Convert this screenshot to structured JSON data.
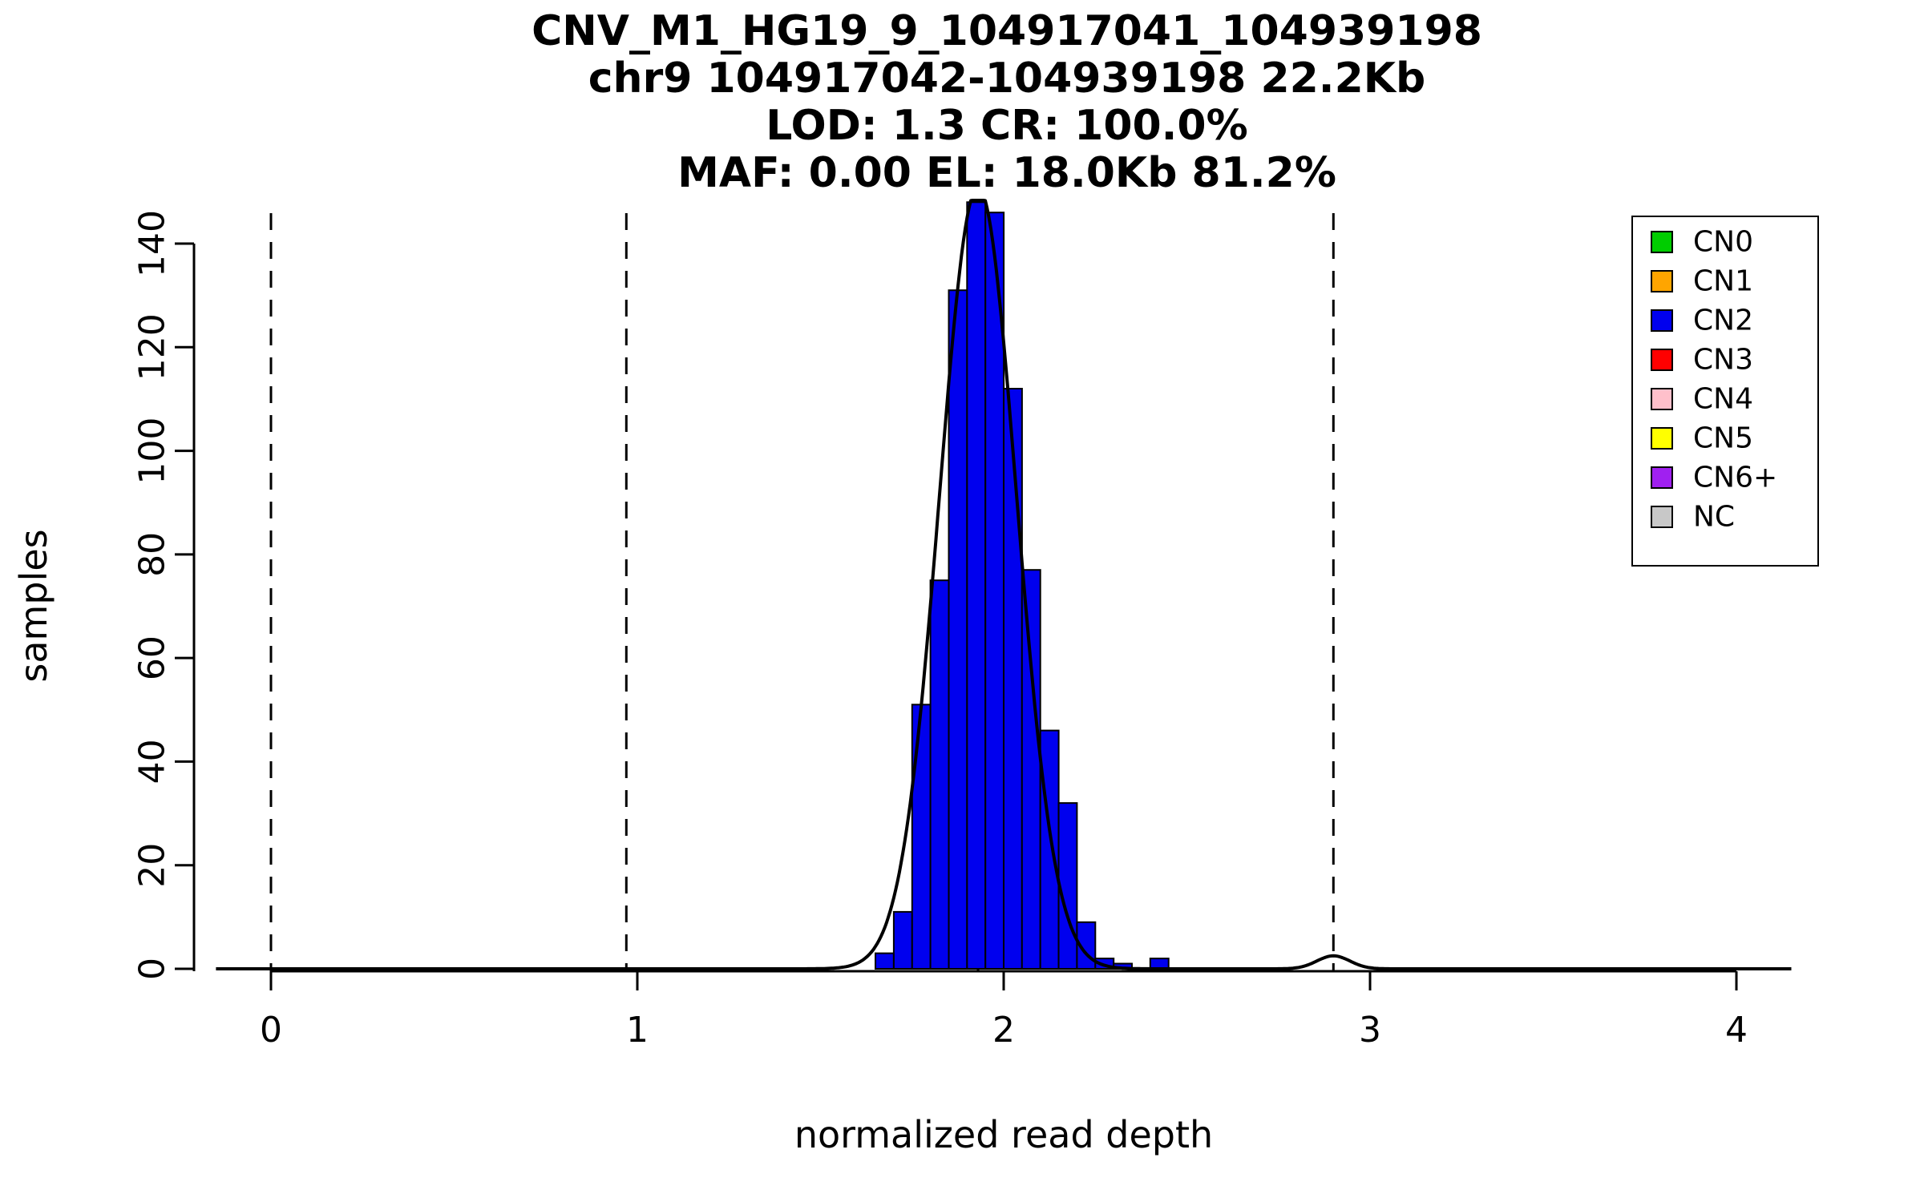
{
  "chart_data": {
    "type": "bar",
    "title_lines": [
      "CNV_M1_HG19_9_104917041_104939198",
      "chr9 104917042-104939198 22.2Kb",
      "LOD: 1.3 CR: 100.0%",
      "MAF: 0.00 EL: 18.0Kb 81.2%"
    ],
    "xlabel": "normalized read depth",
    "ylabel": "samples",
    "xlim": [
      -0.15,
      4.15
    ],
    "ylim": [
      0,
      150
    ],
    "xticks": [
      0,
      1,
      2,
      3,
      4
    ],
    "yticks": [
      0,
      20,
      40,
      60,
      80,
      100,
      120,
      140
    ],
    "grid": false,
    "legend_position": "top-right",
    "bin_width": 0.05,
    "histogram": {
      "bin_start": [
        1.65,
        1.7,
        1.75,
        1.8,
        1.85,
        1.9,
        1.95,
        2.0,
        2.05,
        2.1,
        2.15,
        2.2,
        2.25,
        2.3,
        2.35,
        2.4
      ],
      "counts": [
        3,
        11,
        51,
        75,
        131,
        148,
        146,
        112,
        77,
        46,
        32,
        9,
        2,
        1,
        0,
        2
      ]
    },
    "bar_color": "#0000EE",
    "dashed_lines_x": [
      0,
      0.97,
      1.93,
      2.9
    ],
    "density_curve": {
      "components": [
        {
          "mean": 1.93,
          "sd": 0.105,
          "peak": 151
        },
        {
          "mean": 2.9,
          "sd": 0.045,
          "peak": 2.5
        }
      ]
    },
    "legend": {
      "entries": [
        {
          "label": "CN0",
          "color": "#00CD00"
        },
        {
          "label": "CN1",
          "color": "#FFA500"
        },
        {
          "label": "CN2",
          "color": "#0000EE"
        },
        {
          "label": "CN3",
          "color": "#FF0000"
        },
        {
          "label": "CN4",
          "color": "#FFC0CB"
        },
        {
          "label": "CN5",
          "color": "#FFFF00"
        },
        {
          "label": "CN6+",
          "color": "#A020F0"
        },
        {
          "label": "NC",
          "color": "#C8C8C8"
        }
      ]
    }
  }
}
